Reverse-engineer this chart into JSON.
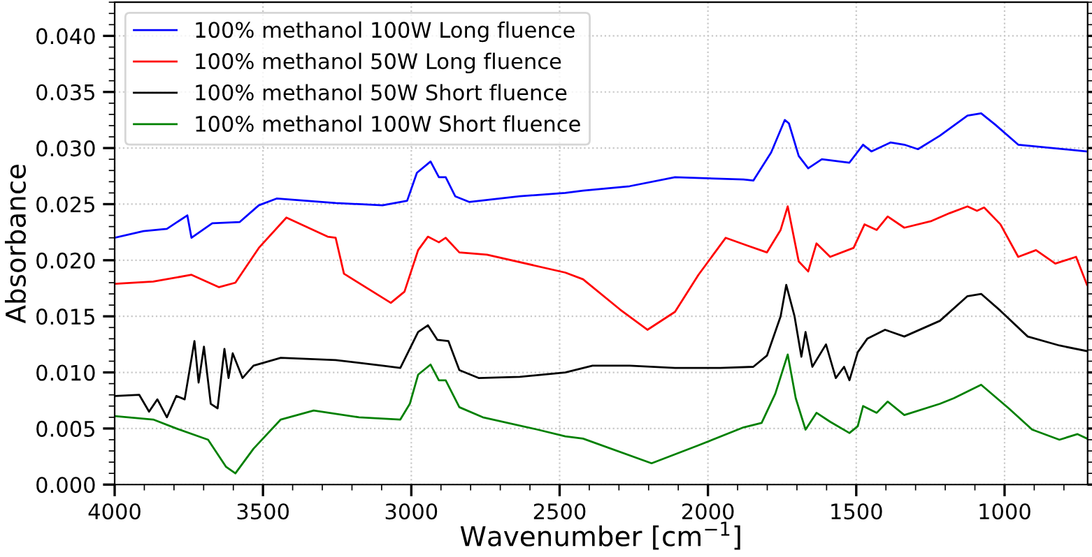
{
  "chart_data": {
    "type": "line",
    "xlabel": "Wavenumber [cm$^{−1}$]",
    "ylabel": "Absorbance",
    "xlim": [
      4000,
      720
    ],
    "xticks": [
      4000,
      3500,
      3000,
      2500,
      2000,
      1500,
      1000
    ],
    "ylim": [
      0,
      0.043
    ],
    "yticks": [
      {
        "value": 0,
        "label": "0.000"
      },
      {
        "value": 0.005,
        "label": "0.005"
      },
      {
        "value": 0.01,
        "label": "0.010"
      },
      {
        "value": 0.015,
        "label": "0.015"
      },
      {
        "value": 0.02,
        "label": "0.020"
      },
      {
        "value": 0.025,
        "label": "0.025"
      },
      {
        "value": 0.03,
        "label": "0.030"
      },
      {
        "value": 0.035,
        "label": "0.035"
      },
      {
        "value": 0.04,
        "label": "0.040"
      }
    ],
    "grid": true,
    "legend": "top left",
    "line_style": "solid",
    "marker": "none",
    "series": [
      {
        "name": "100% methanol 100W Long fluence",
        "color": "#0000ff",
        "x": [
          4000,
          3903,
          3824,
          3755,
          3741,
          3671,
          3579,
          3514,
          3454,
          3255,
          3097,
          3014,
          2981,
          2935,
          2907,
          2884,
          2852,
          2805,
          2634,
          2481,
          2421,
          2264,
          2111,
          1880,
          1847,
          1787,
          1741,
          1727,
          1694,
          1662,
          1616,
          1523,
          1477,
          1449,
          1384,
          1338,
          1292,
          1218,
          1125,
          1079,
          1032,
          954,
          875,
          722
        ],
        "values": [
          0.022,
          0.0226,
          0.0228,
          0.024,
          0.022,
          0.0233,
          0.0234,
          0.0249,
          0.0255,
          0.0251,
          0.0249,
          0.0253,
          0.0278,
          0.0288,
          0.0274,
          0.0274,
          0.0257,
          0.0252,
          0.0257,
          0.026,
          0.0262,
          0.0266,
          0.0274,
          0.0272,
          0.0271,
          0.0296,
          0.0325,
          0.0322,
          0.0293,
          0.0282,
          0.029,
          0.0287,
          0.0303,
          0.0297,
          0.0305,
          0.0303,
          0.0299,
          0.0311,
          0.0329,
          0.0331,
          0.0321,
          0.0303,
          0.0301,
          0.0297
        ]
      },
      {
        "name": "100% methanol 50W Long fluence",
        "color": "#ff0000",
        "x": [
          4000,
          3870,
          3741,
          3648,
          3593,
          3514,
          3421,
          3282,
          3255,
          3227,
          3069,
          3023,
          2977,
          2944,
          2907,
          2884,
          2838,
          2745,
          2481,
          2421,
          2296,
          2204,
          2111,
          2032,
          1940,
          1866,
          1801,
          1755,
          1731,
          1694,
          1662,
          1634,
          1588,
          1509,
          1472,
          1431,
          1394,
          1338,
          1246,
          1185,
          1125,
          1093,
          1069,
          1014,
          954,
          894,
          829,
          759,
          722
        ],
        "values": [
          0.0179,
          0.0181,
          0.0187,
          0.0176,
          0.018,
          0.0211,
          0.0238,
          0.0221,
          0.022,
          0.0188,
          0.0162,
          0.0172,
          0.0209,
          0.0221,
          0.0216,
          0.022,
          0.0207,
          0.0205,
          0.0189,
          0.0183,
          0.0156,
          0.0138,
          0.0154,
          0.0187,
          0.022,
          0.0213,
          0.0207,
          0.0227,
          0.0248,
          0.0199,
          0.019,
          0.0215,
          0.0203,
          0.0211,
          0.0232,
          0.0227,
          0.0239,
          0.0229,
          0.0235,
          0.0242,
          0.0248,
          0.0244,
          0.0247,
          0.0232,
          0.0203,
          0.0209,
          0.0197,
          0.0203,
          0.0178
        ]
      },
      {
        "name": "100% methanol 50W Short fluence",
        "color": "#000000",
        "x": [
          4000,
          3917,
          3884,
          3856,
          3824,
          3792,
          3764,
          3731,
          3717,
          3699,
          3676,
          3653,
          3630,
          3616,
          3602,
          3569,
          3532,
          3440,
          3255,
          3097,
          3037,
          2977,
          2944,
          2912,
          2875,
          2838,
          2773,
          2634,
          2481,
          2389,
          2264,
          2111,
          1958,
          1847,
          1801,
          1755,
          1736,
          1708,
          1685,
          1671,
          1648,
          1602,
          1569,
          1541,
          1523,
          1495,
          1463,
          1403,
          1338,
          1218,
          1125,
          1079,
          1014,
          922,
          815,
          722
        ],
        "values": [
          0.0079,
          0.008,
          0.0065,
          0.0076,
          0.006,
          0.0079,
          0.0076,
          0.0128,
          0.0091,
          0.0123,
          0.0072,
          0.0068,
          0.0121,
          0.0095,
          0.0117,
          0.0095,
          0.0106,
          0.0113,
          0.0111,
          0.0106,
          0.0104,
          0.0136,
          0.0142,
          0.0129,
          0.0128,
          0.0102,
          0.0095,
          0.0096,
          0.01,
          0.0106,
          0.0106,
          0.0104,
          0.0104,
          0.0105,
          0.0115,
          0.015,
          0.0178,
          0.015,
          0.0114,
          0.0136,
          0.0105,
          0.0125,
          0.0095,
          0.0105,
          0.0093,
          0.0118,
          0.013,
          0.0138,
          0.0132,
          0.0146,
          0.0168,
          0.017,
          0.0155,
          0.0132,
          0.0124,
          0.0119
        ]
      },
      {
        "name": "100% methanol 100W Short fluence",
        "color": "#008000",
        "x": [
          4000,
          3870,
          3792,
          3685,
          3625,
          3593,
          3532,
          3440,
          3329,
          3176,
          3037,
          3005,
          2977,
          2935,
          2907,
          2884,
          2838,
          2759,
          2574,
          2481,
          2421,
          2190,
          2032,
          1880,
          1819,
          1773,
          1731,
          1704,
          1671,
          1634,
          1588,
          1523,
          1495,
          1477,
          1431,
          1394,
          1338,
          1218,
          1171,
          1079,
          986,
          907,
          815,
          754,
          722
        ],
        "values": [
          0.0061,
          0.0058,
          0.005,
          0.004,
          0.0016,
          0.001,
          0.0032,
          0.0058,
          0.0066,
          0.006,
          0.0058,
          0.0072,
          0.0098,
          0.0107,
          0.0093,
          0.0093,
          0.0069,
          0.006,
          0.0049,
          0.0043,
          0.0041,
          0.0019,
          0.0035,
          0.0051,
          0.0055,
          0.0081,
          0.0116,
          0.0077,
          0.0049,
          0.0064,
          0.0056,
          0.0046,
          0.0052,
          0.007,
          0.0064,
          0.0074,
          0.0062,
          0.0072,
          0.0077,
          0.0089,
          0.0068,
          0.0049,
          0.004,
          0.0045,
          0.0041
        ]
      }
    ]
  }
}
